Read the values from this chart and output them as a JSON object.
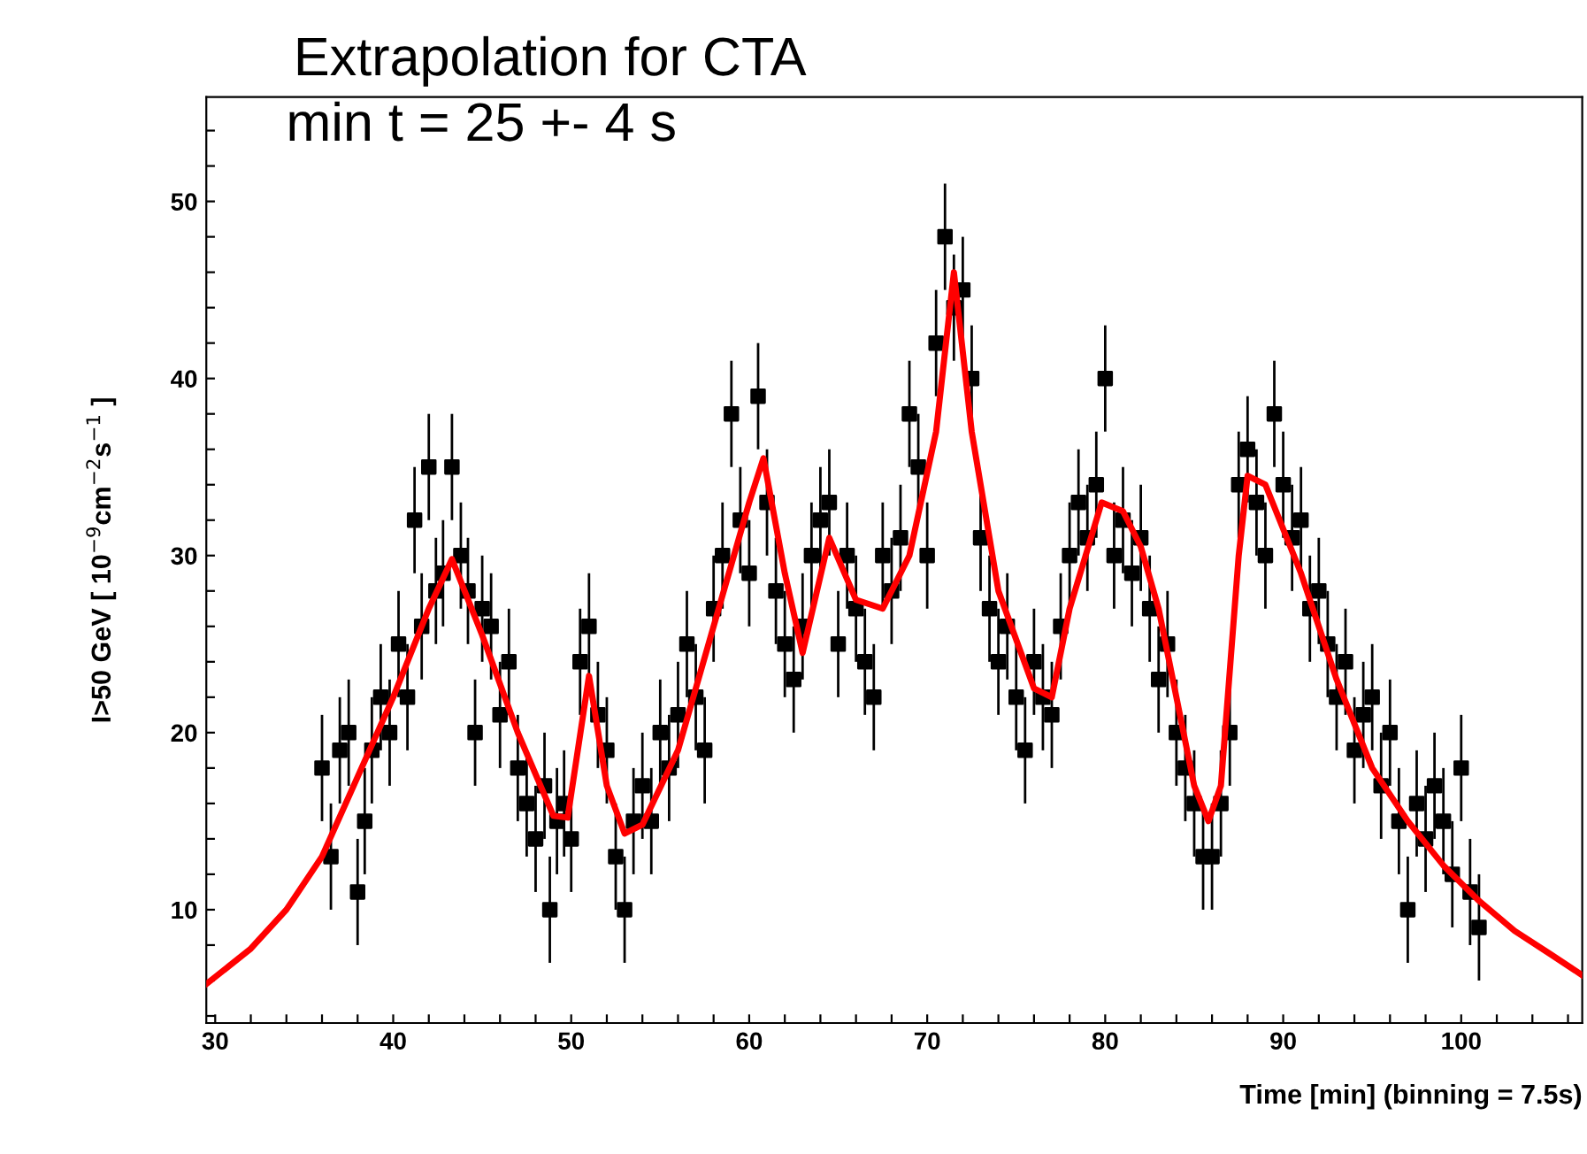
{
  "chart_data": {
    "type": "scatter",
    "title": "Extrapolation for CTA",
    "subtitle": "min t = 25 +- 4 s",
    "xlabel": "Time [min] (binning = 7.5s)",
    "ylabel": "I>50 GeV [ 10$^{−9}$cm$^{−2}$s$^{−1}$ ]",
    "xlim": [
      29.5,
      106.8
    ],
    "ylim": [
      3.6,
      55.9
    ],
    "xticks": [
      30,
      {
        "value": 32,
        "label": null
      },
      {
        "value": 34,
        "label": null
      },
      {
        "value": 36,
        "label": null
      },
      {
        "value": 38,
        "label": null
      },
      40,
      {
        "value": 42,
        "label": null
      },
      {
        "value": 44,
        "label": null
      },
      {
        "value": 46,
        "label": null
      },
      {
        "value": 48,
        "label": null
      },
      50,
      {
        "value": 52,
        "label": null
      },
      {
        "value": 54,
        "label": null
      },
      {
        "value": 56,
        "label": null
      },
      {
        "value": 58,
        "label": null
      },
      60,
      {
        "value": 62,
        "label": null
      },
      {
        "value": 64,
        "label": null
      },
      {
        "value": 66,
        "label": null
      },
      {
        "value": 68,
        "label": null
      },
      70,
      {
        "value": 72,
        "label": null
      },
      {
        "value": 74,
        "label": null
      },
      {
        "value": 76,
        "label": null
      },
      {
        "value": 78,
        "label": null
      },
      80,
      {
        "value": 82,
        "label": null
      },
      {
        "value": 84,
        "label": null
      },
      {
        "value": 86,
        "label": null
      },
      {
        "value": 88,
        "label": null
      },
      90,
      {
        "value": 92,
        "label": null
      },
      {
        "value": 94,
        "label": null
      },
      {
        "value": 96,
        "label": null
      },
      {
        "value": 98,
        "label": null
      },
      100,
      {
        "value": 102,
        "label": null
      },
      {
        "value": 104,
        "label": null
      },
      {
        "value": 106,
        "label": null
      }
    ],
    "yticks": [
      {
        "value": 4,
        "label": null
      },
      {
        "value": 6,
        "label": null
      },
      {
        "value": 8,
        "label": null
      },
      10,
      {
        "value": 12,
        "label": null
      },
      {
        "value": 14,
        "label": null
      },
      {
        "value": 16,
        "label": null
      },
      {
        "value": 18,
        "label": null
      },
      20,
      {
        "value": 22,
        "label": null
      },
      {
        "value": 24,
        "label": null
      },
      {
        "value": 26,
        "label": null
      },
      {
        "value": 28,
        "label": null
      },
      30,
      {
        "value": 32,
        "label": null
      },
      {
        "value": 34,
        "label": null
      },
      {
        "value": 36,
        "label": null
      },
      {
        "value": 38,
        "label": null
      },
      40,
      {
        "value": 42,
        "label": null
      },
      {
        "value": 44,
        "label": null
      },
      {
        "value": 46,
        "label": null
      },
      {
        "value": 48,
        "label": null
      },
      50,
      {
        "value": 52,
        "label": null
      },
      {
        "value": 54,
        "label": null
      }
    ],
    "grid": false,
    "legend": false,
    "series": [
      {
        "color": "#000000",
        "marker": "square",
        "x": [
          36,
          36.5,
          37,
          37.5,
          38,
          38.4,
          38.8,
          39.3,
          39.8,
          40.3,
          40.8,
          41.2,
          41.6,
          42,
          42.4,
          42.8,
          43.3,
          43.8,
          44.2,
          44.6,
          45,
          45.5,
          46,
          46.5,
          47,
          47.5,
          48,
          48.5,
          48.8,
          49.2,
          49.6,
          50,
          50.5,
          51,
          51.5,
          52,
          52.5,
          53,
          53.5,
          54,
          54.5,
          55,
          55.5,
          56,
          56.5,
          57,
          57.5,
          58,
          58.5,
          59,
          59.5,
          60,
          60.5,
          61,
          61.5,
          62,
          62.5,
          63,
          63.5,
          64,
          64.5,
          65,
          65.5,
          66,
          66.5,
          67,
          67.5,
          68,
          68.5,
          69,
          69.5,
          70,
          70.5,
          71,
          71.5,
          72,
          72.5,
          73,
          73.5,
          74,
          74.5,
          75,
          75.5,
          76,
          76.5,
          77,
          77.5,
          78,
          78.5,
          79,
          79.5,
          80,
          80.5,
          81,
          81.5,
          82,
          82.5,
          83,
          83.5,
          84,
          84.5,
          85,
          85.5,
          86,
          86.5,
          87,
          87.5,
          88,
          88.5,
          89,
          89.5,
          90,
          90.5,
          91,
          91.5,
          92,
          92.5,
          93,
          93.5,
          94,
          94.5,
          95,
          95.5,
          96,
          96.5,
          97,
          97.5,
          98,
          98.5,
          99,
          99.5,
          100,
          100.5,
          101
        ],
        "values": [
          18,
          13,
          19,
          20,
          11,
          15,
          19,
          22,
          20,
          25,
          22,
          32,
          26,
          35,
          28,
          29,
          35,
          30,
          28,
          20,
          27,
          26,
          21,
          24,
          18,
          16,
          14,
          17,
          10,
          15,
          16,
          14,
          24,
          26,
          21,
          19,
          13,
          10,
          15,
          17,
          15,
          20,
          18,
          21,
          25,
          22,
          19,
          27,
          30,
          38,
          32,
          29,
          39,
          33,
          28,
          25,
          23,
          26,
          30,
          32,
          33,
          25,
          30,
          27,
          24,
          22,
          30,
          28,
          31,
          38,
          35,
          30,
          42,
          48,
          44,
          45,
          40,
          31,
          27,
          24,
          26,
          22,
          19,
          24,
          22,
          21,
          26,
          30,
          33,
          31,
          34,
          40,
          30,
          32,
          29,
          31,
          27,
          23,
          25,
          20,
          18,
          16,
          13,
          13,
          16,
          20,
          34,
          36,
          33,
          30,
          38,
          34,
          31,
          32,
          27,
          28,
          25,
          22,
          24,
          19,
          21,
          22,
          17,
          20,
          15,
          10,
          16,
          14,
          17,
          15,
          12,
          18,
          11,
          9
        ],
        "errors": [
          3,
          3,
          3,
          3,
          3,
          3,
          3,
          3,
          3,
          3,
          3,
          3,
          3,
          3,
          3,
          3,
          3,
          3,
          3,
          3,
          3,
          3,
          3,
          3,
          3,
          3,
          3,
          3,
          3,
          3,
          3,
          3,
          3,
          3,
          3,
          3,
          3,
          3,
          3,
          3,
          3,
          3,
          3,
          3,
          3,
          3,
          3,
          3,
          3,
          3,
          3,
          3,
          3,
          3,
          3,
          3,
          3,
          3,
          3,
          3,
          3,
          3,
          3,
          3,
          3,
          3,
          3,
          3,
          3,
          3,
          3,
          3,
          3,
          3,
          3,
          3,
          3,
          3,
          3,
          3,
          3,
          3,
          3,
          3,
          3,
          3,
          3,
          3,
          3,
          3,
          3,
          3,
          3,
          3,
          3,
          3,
          3,
          3,
          3,
          3,
          3,
          3,
          3,
          3,
          3,
          3,
          3,
          3,
          3,
          3,
          3,
          3,
          3,
          3,
          3,
          3,
          3,
          3,
          3,
          3,
          3,
          3,
          3,
          3,
          3,
          3,
          3,
          3,
          3,
          3,
          3,
          3,
          3,
          3
        ]
      },
      {
        "type": "line",
        "color": "#ff0000",
        "marker": "none",
        "line_style": "solid",
        "x": [
          29.5,
          32,
          34,
          36,
          38,
          40,
          42,
          43.3,
          45,
          47,
          49,
          49.8,
          51,
          52,
          53,
          54,
          56,
          58,
          60,
          60.8,
          62,
          63,
          64.5,
          66,
          67.5,
          69,
          70.5,
          71.5,
          72.5,
          74,
          76,
          77,
          78,
          79.8,
          81,
          82,
          83,
          84,
          85,
          85.8,
          86.5,
          87.5,
          88,
          89,
          91,
          93,
          95,
          97,
          99,
          101,
          103,
          105,
          106.8
        ],
        "values": [
          5.8,
          7.8,
          10,
          13,
          17.5,
          22,
          27,
          29.8,
          25.5,
          20,
          15.3,
          15.2,
          23.2,
          17,
          14.3,
          14.8,
          19,
          26,
          33,
          35.5,
          29,
          24.5,
          31,
          27.5,
          27,
          30,
          37,
          46,
          37,
          28,
          22.5,
          22,
          27,
          33,
          32.5,
          30.5,
          27,
          22,
          17,
          15,
          17,
          30,
          34.5,
          34,
          29,
          23,
          18,
          15,
          12.5,
          10.5,
          8.8,
          7.5,
          6.3
        ]
      }
    ]
  }
}
